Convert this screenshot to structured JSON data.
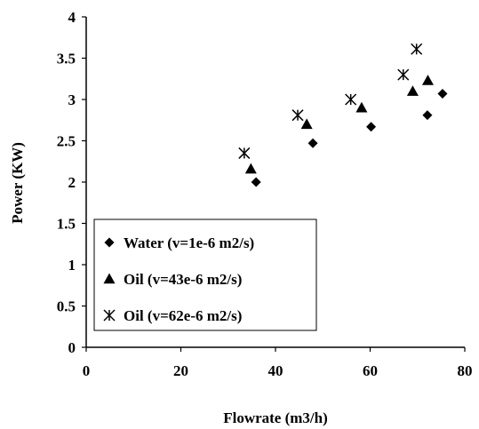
{
  "chart_data": {
    "type": "scatter",
    "xlabel": "Flowrate (m3/h)",
    "ylabel": "Power (KW)",
    "xlim": [
      0,
      80
    ],
    "ylim": [
      0,
      4
    ],
    "x_ticks": [
      "0",
      "20",
      "40",
      "60",
      "80"
    ],
    "y_ticks": [
      "0",
      "0.5",
      "1",
      "1.5",
      "2",
      "2.5",
      "3",
      "3.5",
      "4"
    ],
    "grid": false,
    "legend_position": "bottom-left",
    "series": [
      {
        "name": "Water (v=1e-6 m2/s)",
        "marker": "diamond",
        "points": [
          [
            35.9,
            2.0
          ],
          [
            47.9,
            2.47
          ],
          [
            60.2,
            2.67
          ],
          [
            72.1,
            2.81
          ],
          [
            75.3,
            3.07
          ]
        ]
      },
      {
        "name": "Oil (v=43e-6 m2/s)",
        "marker": "triangle",
        "points": [
          [
            34.8,
            2.16
          ],
          [
            46.6,
            2.7
          ],
          [
            58.2,
            2.9
          ],
          [
            69.0,
            3.1
          ],
          [
            72.2,
            3.23
          ]
        ]
      },
      {
        "name": "Oil (v=62e-6 m2/s)",
        "marker": "asterisk",
        "points": [
          [
            33.4,
            2.35
          ],
          [
            44.7,
            2.81
          ],
          [
            55.9,
            3.0
          ],
          [
            67.0,
            3.3
          ],
          [
            69.8,
            3.61
          ]
        ]
      }
    ]
  }
}
